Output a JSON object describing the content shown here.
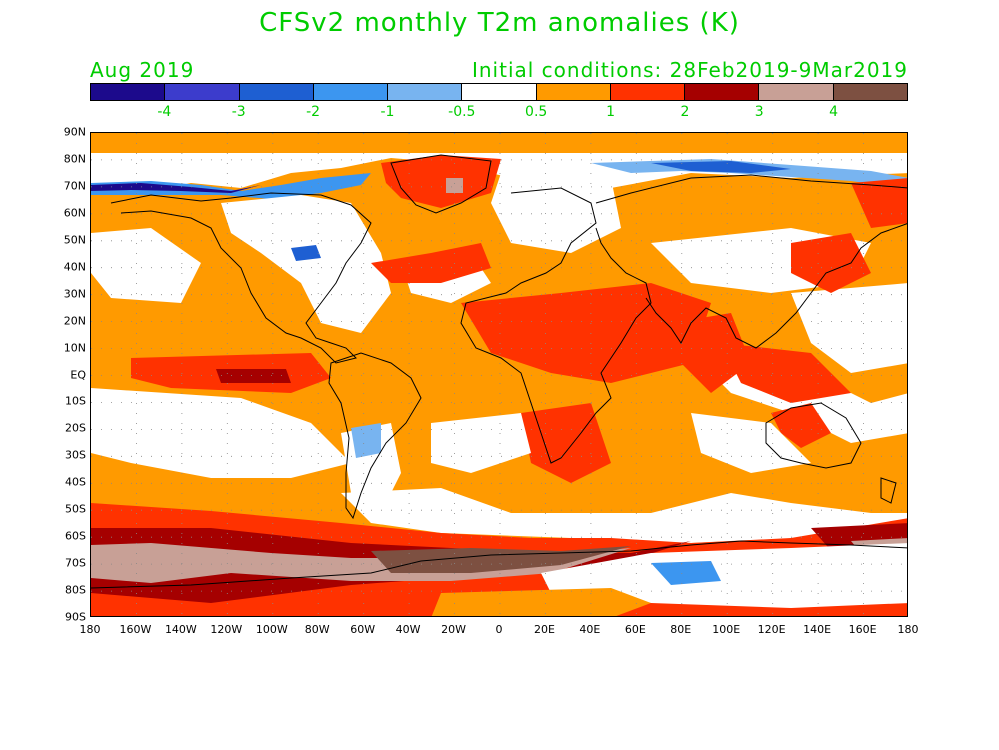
{
  "title": "CFSv2 monthly T2m anomalies (K)",
  "valid_month": "Aug 2019",
  "initial_conditions": "Initial conditions: 28Feb2019-9Mar2019",
  "text_color": "#00cc00",
  "colorbar": {
    "colors": [
      "#1c0a8c",
      "#3c3ccc",
      "#1e5fd2",
      "#3c96f0",
      "#78b4f0",
      "#ffffff",
      "#ff9a00",
      "#ff3200",
      "#a50000",
      "#c8a096",
      "#7d5041"
    ],
    "labels": [
      "-4",
      "-3",
      "-2",
      "-1",
      "-0.5",
      "0.5",
      "1",
      "2",
      "3",
      "4"
    ]
  },
  "axes": {
    "lat_labels": [
      "90N",
      "80N",
      "70N",
      "60N",
      "50N",
      "40N",
      "30N",
      "20N",
      "10N",
      "EQ",
      "10S",
      "20S",
      "30S",
      "40S",
      "50S",
      "60S",
      "70S",
      "80S",
      "90S"
    ],
    "lon_labels": [
      "180",
      "160W",
      "140W",
      "120W",
      "100W",
      "80W",
      "60W",
      "40W",
      "20W",
      "0",
      "20E",
      "40E",
      "60E",
      "80E",
      "100E",
      "120E",
      "140E",
      "160E",
      "180"
    ]
  }
}
